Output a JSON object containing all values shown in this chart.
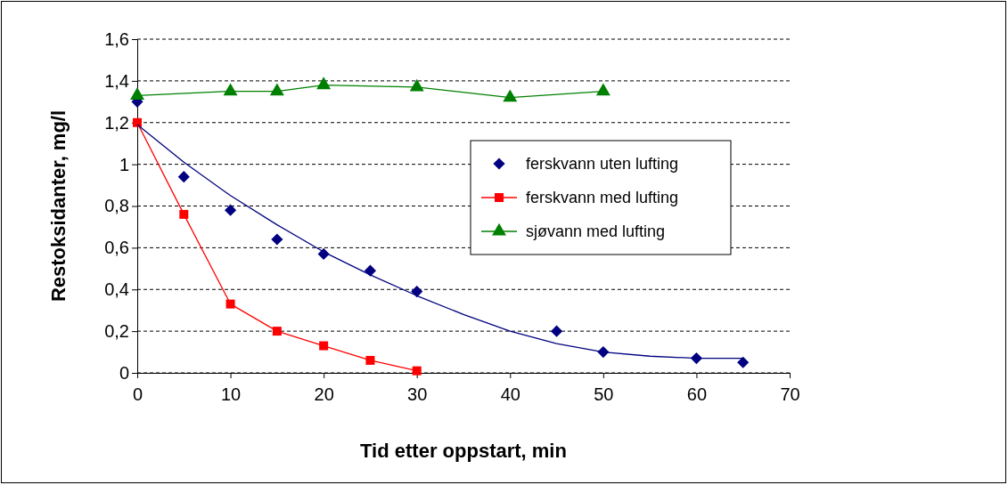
{
  "chart_data": {
    "type": "scatter",
    "xlabel": "Tid etter oppstart, min",
    "ylabel": "Restoksidanter, mg/l",
    "xlim": [
      0,
      70
    ],
    "xticks": [
      0,
      10,
      20,
      30,
      40,
      50,
      60,
      70
    ],
    "ylim": [
      0,
      1.6
    ],
    "yticks": [
      0,
      {
        "value": 0.2,
        "label": "0,2"
      },
      {
        "value": 0.4,
        "label": "0,4"
      },
      {
        "value": 0.6,
        "label": "0,6"
      },
      {
        "value": 0.8,
        "label": "0,8"
      },
      1,
      {
        "value": 1.2,
        "label": "1,2"
      },
      {
        "value": 1.4,
        "label": "1,4"
      },
      {
        "value": 1.6,
        "label": "1,6"
      }
    ],
    "grid": "y",
    "legend": "right",
    "series": [
      {
        "name": "ferskvann uten lufting",
        "type": "scatter",
        "marker": "diamond",
        "color": "#000080",
        "x": [
          0,
          5,
          10,
          15,
          20,
          25,
          30,
          45,
          50,
          60,
          65
        ],
        "values": [
          1.3,
          0.94,
          0.78,
          0.64,
          0.57,
          0.49,
          0.39,
          0.2,
          0.1,
          0.07,
          0.05
        ]
      },
      {
        "name": "ferskvann med lufting",
        "type": "line",
        "marker": "square",
        "color": "#ff0000",
        "x": [
          0,
          5,
          10,
          15,
          20,
          25,
          30
        ],
        "values": [
          1.2,
          0.76,
          0.33,
          0.2,
          0.13,
          0.06,
          0.01
        ]
      },
      {
        "name": "sjøvann med lufting",
        "type": "line",
        "marker": "triangle",
        "color": "#008000",
        "x": [
          0,
          10,
          15,
          20,
          30,
          40,
          50
        ],
        "values": [
          1.33,
          1.35,
          1.35,
          1.38,
          1.37,
          1.32,
          1.35
        ]
      },
      {
        "type": "line",
        "marker": "none",
        "color": "#000080",
        "x": [
          0,
          5,
          10,
          15,
          20,
          25,
          30,
          35,
          40,
          45,
          50,
          55,
          60,
          65
        ],
        "values": [
          1.19,
          1.01,
          0.85,
          0.71,
          0.58,
          0.47,
          0.37,
          0.28,
          0.2,
          0.14,
          0.1,
          0.08,
          0.07,
          0.07
        ]
      }
    ]
  }
}
